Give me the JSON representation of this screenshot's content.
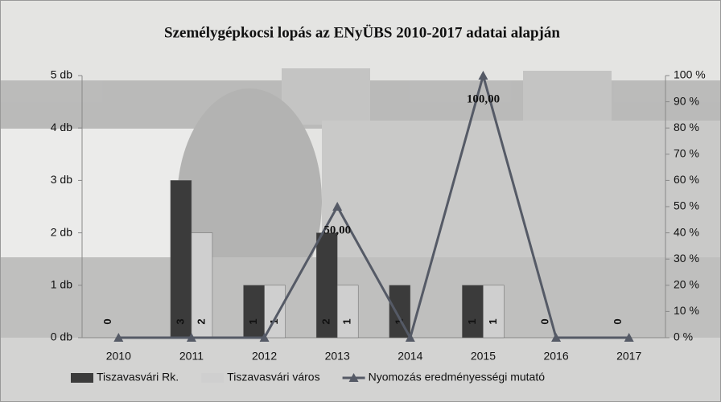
{
  "chart_data": {
    "type": "bar-line",
    "title": "Személygépkocsi lopás az ENyÜBS 2010-2017 adatai alapján",
    "categories": [
      "2010",
      "2011",
      "2012",
      "2013",
      "2014",
      "2015",
      "2016",
      "2017"
    ],
    "series": [
      {
        "name": "Tiszavasvári Rk.",
        "type": "bar",
        "color": "#3b3b3b",
        "values": [
          0,
          3,
          1,
          2,
          1,
          1,
          0,
          0
        ]
      },
      {
        "name": "Tiszavasvári város",
        "type": "bar",
        "color": "#cfcfcf",
        "values": [
          null,
          2,
          1,
          1,
          null,
          1,
          null,
          null
        ]
      },
      {
        "name": "Nyomozás eredményességi mutató",
        "type": "line",
        "axis": "y2",
        "color": "#555a66",
        "values": [
          0,
          0,
          0,
          50,
          0,
          100,
          0,
          0
        ],
        "value_labels": [
          null,
          null,
          null,
          "50,00",
          null,
          "100,00",
          null,
          null
        ]
      }
    ],
    "ylim": [
      0,
      5
    ],
    "yticks": [
      {
        "value": 0,
        "label": "0 db"
      },
      {
        "value": 1,
        "label": "1 db"
      },
      {
        "value": 2,
        "label": "2 db"
      },
      {
        "value": 3,
        "label": "3 db"
      },
      {
        "value": 4,
        "label": "4 db"
      },
      {
        "value": 5,
        "label": "5 db"
      }
    ],
    "y2lim": [
      0,
      100
    ],
    "y2ticks": [
      {
        "value": 0,
        "label": "0 %"
      },
      {
        "value": 10,
        "label": "10 %"
      },
      {
        "value": 20,
        "label": "20 %"
      },
      {
        "value": 30,
        "label": "30 %"
      },
      {
        "value": 40,
        "label": "40 %"
      },
      {
        "value": 50,
        "label": "50 %"
      },
      {
        "value": 60,
        "label": "60 %"
      },
      {
        "value": 70,
        "label": "70 %"
      },
      {
        "value": 80,
        "label": "80 %"
      },
      {
        "value": 90,
        "label": "90 %"
      },
      {
        "value": 100,
        "label": "100 %"
      }
    ],
    "legend": "bottom"
  }
}
